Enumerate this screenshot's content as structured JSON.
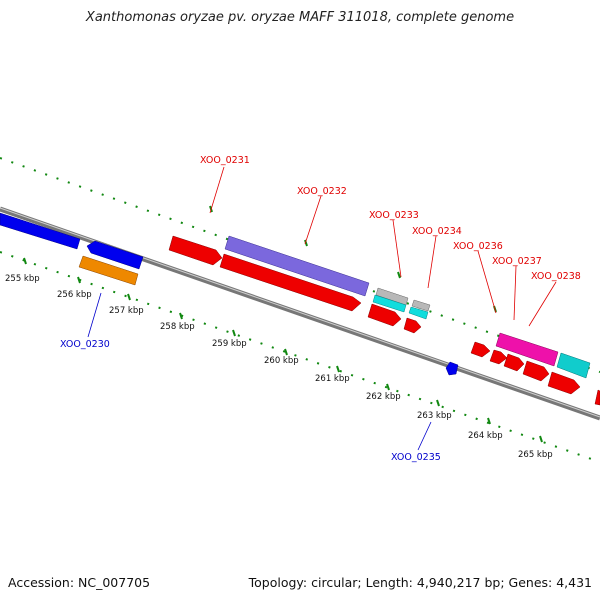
{
  "title": "Xanthomonas oryzae pv. oryzae MAFF 311018, complete genome",
  "footer": {
    "accession": "Accession: NC_007705",
    "stats": "Topology: circular; Length: 4,940,217 bp; Genes: 4,431"
  },
  "scale": {
    "tick_labels": [
      "255 kbp",
      "256 kbp",
      "257 kbp",
      "258 kbp",
      "259 kbp",
      "260 kbp",
      "261 kbp",
      "262 kbp",
      "263 kbp",
      "264 kbp",
      "265 kbp"
    ]
  },
  "gene_labels": [
    {
      "name": "XOO_0230",
      "strand": "reverse"
    },
    {
      "name": "XOO_0231",
      "strand": "forward"
    },
    {
      "name": "XOO_0232",
      "strand": "forward"
    },
    {
      "name": "XOO_0233",
      "strand": "forward"
    },
    {
      "name": "XOO_0234",
      "strand": "forward"
    },
    {
      "name": "XOO_0235",
      "strand": "reverse"
    },
    {
      "name": "XOO_0236",
      "strand": "forward"
    },
    {
      "name": "XOO_0237",
      "strand": "forward"
    },
    {
      "name": "XOO_0238",
      "strand": "forward"
    }
  ],
  "colors": {
    "forward_label": "#e00000",
    "reverse_label": "#0000cc",
    "backbone": "#777777",
    "tick": "#118811",
    "cds_red": "#ee0000",
    "cds_blue": "#0000ee",
    "cds_orange": "#ee8800",
    "cds_purple": "#7b68dd",
    "cds_grey": "#b8b8b8",
    "cds_cyan": "#11dddd",
    "cds_magenta": "#ee11aa",
    "cds_teal": "#11bbbb"
  }
}
